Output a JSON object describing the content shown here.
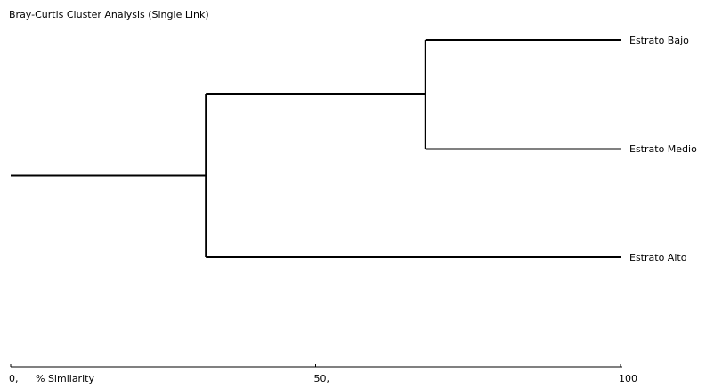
{
  "chart_data": {
    "type": "dendrogram",
    "title": "Bray-Curtis Cluster Analysis (Single Link)",
    "xlabel": "% Similarity",
    "xlim": [
      0,
      100
    ],
    "x_ticks": [
      {
        "value": 0,
        "label": "0,"
      },
      {
        "value": 50,
        "label": "50,"
      },
      {
        "value": 100,
        "label": "100"
      }
    ],
    "leaves": [
      "Estrato Bajo",
      "Estrato Medio",
      "Estrato Alto"
    ],
    "merges": [
      {
        "a": "Estrato Bajo",
        "b": "Estrato Medio",
        "similarity": 68
      },
      {
        "a": "cluster:Estrato Bajo+Estrato Medio",
        "b": "Estrato Alto",
        "similarity": 32
      }
    ],
    "grid": false,
    "legend": "none"
  }
}
